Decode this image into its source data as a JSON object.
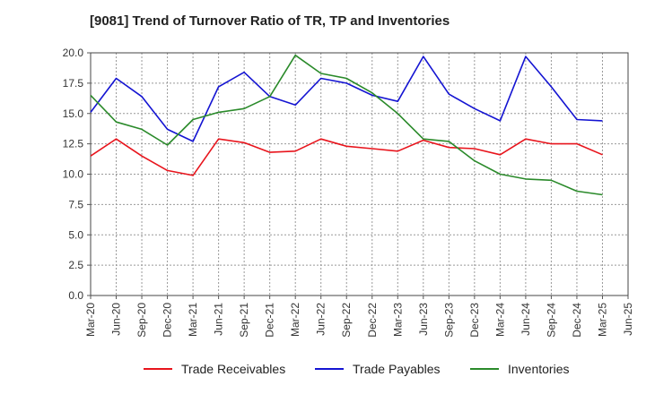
{
  "chart_data": {
    "type": "line",
    "title": "[9081]  Trend of Turnover Ratio of TR, TP and Inventories",
    "xlabel": "",
    "ylabel": "",
    "ylim": [
      0,
      20
    ],
    "yticks": [
      "0.0",
      "2.5",
      "5.0",
      "7.5",
      "10.0",
      "12.5",
      "15.0",
      "17.5",
      "20.0"
    ],
    "x": [
      "Mar-20",
      "Jun-20",
      "Sep-20",
      "Dec-20",
      "Mar-21",
      "Jun-21",
      "Sep-21",
      "Dec-21",
      "Mar-22",
      "Jun-22",
      "Sep-22",
      "Dec-22",
      "Mar-23",
      "Jun-23",
      "Sep-23",
      "Dec-23",
      "Mar-24",
      "Jun-24",
      "Sep-24",
      "Dec-24",
      "Mar-25",
      "Jun-25"
    ],
    "grid": true,
    "legend_position": "bottom",
    "series": [
      {
        "name": "Trade Receivables",
        "color": "#e8141c",
        "values": [
          11.5,
          12.9,
          11.5,
          10.3,
          9.9,
          12.9,
          12.6,
          11.8,
          11.9,
          12.9,
          12.3,
          12.1,
          11.9,
          12.8,
          12.2,
          12.1,
          11.6,
          12.9,
          12.5,
          12.5,
          11.6,
          null
        ]
      },
      {
        "name": "Trade Payables",
        "color": "#1414d2",
        "values": [
          15.1,
          17.9,
          16.4,
          13.7,
          12.7,
          17.2,
          18.4,
          16.4,
          15.7,
          17.9,
          17.5,
          16.5,
          16.0,
          19.7,
          16.6,
          15.4,
          14.4,
          19.7,
          17.2,
          14.5,
          14.4,
          null
        ]
      },
      {
        "name": "Inventories",
        "color": "#2a8a2a",
        "values": [
          16.5,
          14.3,
          13.7,
          12.4,
          14.5,
          15.1,
          15.4,
          16.4,
          19.8,
          18.3,
          17.9,
          16.7,
          15.0,
          12.9,
          12.7,
          11.1,
          10.0,
          9.6,
          9.5,
          8.6,
          8.3,
          null
        ]
      }
    ]
  }
}
